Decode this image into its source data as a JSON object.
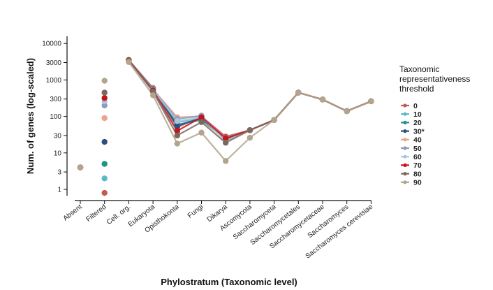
{
  "chart_data": {
    "type": "line",
    "title": "",
    "xlabel": "Phylostratum (Taxonomic level)",
    "ylabel": "Num. of genes (log-scaled)",
    "y_scale": "log",
    "ylim": [
      0.75,
      13000
    ],
    "y_ticks": [
      1,
      3,
      10,
      30,
      100,
      300,
      1000,
      3000,
      10000
    ],
    "y_tick_labels": [
      "1",
      "3",
      "10",
      "30",
      "100",
      "300",
      "1000",
      "3000",
      "10000"
    ],
    "categories": [
      "Absent",
      "Filtered",
      "Cell. org.",
      "Eukaryota",
      "Opisthokonta",
      "Fungi",
      "Dikarya",
      "Ascomycota",
      "Saccharomyceta",
      "Saccharomycetales",
      "Saccharomycetaceae",
      "Saccharomyces",
      "Saccharomyces cerevisiae"
    ],
    "grid": false,
    "legend": {
      "title": "Taxonomic representativeness threshold",
      "title_lines": [
        "Taxonomic",
        "representativeness",
        "threshold"
      ],
      "position": "right"
    },
    "series": [
      {
        "name": "0",
        "color": "#c05a52",
        "values": [
          4,
          0.8,
          3500,
          600,
          50,
          100,
          28,
          42,
          80,
          450,
          290,
          140,
          260
        ]
      },
      {
        "name": "10",
        "color": "#5bb8c6",
        "values": [
          4,
          2,
          3500,
          580,
          70,
          85,
          25,
          42,
          80,
          450,
          290,
          140,
          260
        ]
      },
      {
        "name": "20",
        "color": "#1d9484",
        "values": [
          4,
          5,
          3500,
          570,
          60,
          80,
          24,
          42,
          80,
          450,
          290,
          140,
          260
        ]
      },
      {
        "name": "30*",
        "color": "#2d4f80",
        "values": [
          4,
          20,
          3500,
          560,
          55,
          90,
          23,
          42,
          80,
          450,
          290,
          140,
          260
        ]
      },
      {
        "name": "40",
        "color": "#e9a48a",
        "values": [
          4,
          90,
          3500,
          550,
          95,
          100,
          22,
          42,
          80,
          450,
          290,
          140,
          260
        ]
      },
      {
        "name": "50",
        "color": "#8e9bbf",
        "values": [
          4,
          200,
          3500,
          540,
          85,
          105,
          22,
          42,
          80,
          450,
          290,
          140,
          260
        ]
      },
      {
        "name": "60",
        "color": "#a9c7dc",
        "values": [
          4,
          260,
          3500,
          530,
          75,
          95,
          21,
          42,
          80,
          450,
          290,
          140,
          260
        ]
      },
      {
        "name": "70",
        "color": "#c4141c",
        "values": [
          4,
          320,
          3500,
          520,
          40,
          95,
          25,
          42,
          80,
          450,
          290,
          140,
          260
        ]
      },
      {
        "name": "80",
        "color": "#7a6a5e",
        "values": [
          4,
          450,
          3400,
          480,
          30,
          70,
          19,
          42,
          80,
          450,
          290,
          140,
          260
        ]
      },
      {
        "name": "90",
        "color": "#b3a48c",
        "values": [
          4,
          950,
          3100,
          380,
          18,
          36,
          6,
          26,
          80,
          450,
          290,
          140,
          260
        ]
      }
    ]
  }
}
